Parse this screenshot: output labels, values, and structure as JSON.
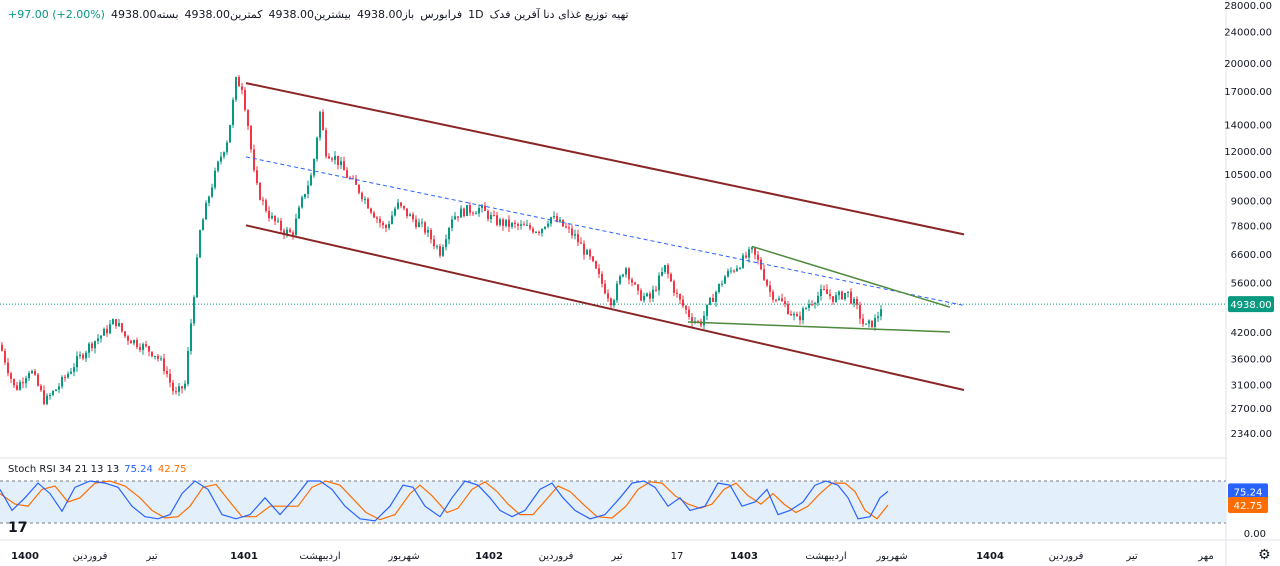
{
  "legend": {
    "title": "تهیه توزیع غذای دنا آفرین فدک",
    "interval": "1D",
    "exchange": "فرابورس",
    "open": "باز4938.00",
    "high": "بیشترین4938.00",
    "low": "کمترین4938.00",
    "close": "بسته4938.00",
    "change": "+97.00 (+2.00%)"
  },
  "stoch": {
    "label": "Stoch RSI 34 21 13 13",
    "k_value": "75.24",
    "d_value": "42.75"
  },
  "chart_data": {
    "type": "candlestick",
    "y_scale": "log",
    "price_axis": [
      "28000.00",
      "24000.00",
      "20000.00",
      "17000.00",
      "14000.00",
      "12000.00",
      "10500.00",
      "9000.00",
      "7800.00",
      "6600.00",
      "5600.00",
      "4200.00",
      "3600.00",
      "3100.00",
      "2700.00",
      "2340.00"
    ],
    "last_price": "4938.00",
    "time_axis": [
      "1400",
      "فروردین",
      "تیر",
      "1401",
      "اردیبهشت",
      "شهریور",
      "1402",
      "فروردین",
      "تیر",
      "17",
      "1403",
      "اردیبهشت",
      "شهریور",
      "1404",
      "فروردین",
      "تیر",
      "مهر"
    ],
    "stoch_axis": [
      "75.24",
      "42.75",
      "0.00"
    ],
    "stoch_bands": [
      80,
      20
    ],
    "colors": {
      "up": "#089981",
      "down": "#f23645",
      "channel": "#8b2525",
      "triangle": "#4e8a3c",
      "midline": "#2962ff",
      "k": "#2962ff",
      "d": "#ff6d00",
      "band_fill": "#e3f0fc"
    },
    "price_path": [
      [
        0,
        3900
      ],
      [
        15,
        3000
      ],
      [
        30,
        3400
      ],
      [
        45,
        2800
      ],
      [
        60,
        3100
      ],
      [
        75,
        3500
      ],
      [
        90,
        3900
      ],
      [
        105,
        4200
      ],
      [
        115,
        4500
      ],
      [
        125,
        4100
      ],
      [
        140,
        3900
      ],
      [
        155,
        3700
      ],
      [
        165,
        3400
      ],
      [
        175,
        2900
      ],
      [
        185,
        3100
      ],
      [
        192,
        4700
      ],
      [
        200,
        7500
      ],
      [
        210,
        9500
      ],
      [
        220,
        11500
      ],
      [
        228,
        13000
      ],
      [
        236,
        18000
      ],
      [
        242,
        17500
      ],
      [
        248,
        14000
      ],
      [
        255,
        10000
      ],
      [
        262,
        9000
      ],
      [
        270,
        8200
      ],
      [
        282,
        7600
      ],
      [
        292,
        7400
      ],
      [
        305,
        9500
      ],
      [
        312,
        10500
      ],
      [
        320,
        15000
      ],
      [
        326,
        12000
      ],
      [
        336,
        11500
      ],
      [
        348,
        10300
      ],
      [
        360,
        9500
      ],
      [
        372,
        8500
      ],
      [
        385,
        7600
      ],
      [
        397,
        8800
      ],
      [
        410,
        8200
      ],
      [
        425,
        7600
      ],
      [
        440,
        6700
      ],
      [
        452,
        8200
      ],
      [
        465,
        8500
      ],
      [
        480,
        8600
      ],
      [
        495,
        8000
      ],
      [
        510,
        7800
      ],
      [
        525,
        7700
      ],
      [
        540,
        7600
      ],
      [
        550,
        8200
      ],
      [
        562,
        7800
      ],
      [
        575,
        7300
      ],
      [
        590,
        6400
      ],
      [
        603,
        5500
      ],
      [
        612,
        5000
      ],
      [
        625,
        6200
      ],
      [
        638,
        5200
      ],
      [
        650,
        5100
      ],
      [
        665,
        6100
      ],
      [
        678,
        5100
      ],
      [
        690,
        4600
      ],
      [
        700,
        4400
      ],
      [
        712,
        5100
      ],
      [
        725,
        5800
      ],
      [
        738,
        6200
      ],
      [
        752,
        6700
      ],
      [
        760,
        6200
      ],
      [
        770,
        5300
      ],
      [
        785,
        4900
      ],
      [
        797,
        4500
      ],
      [
        810,
        5000
      ],
      [
        823,
        5300
      ],
      [
        835,
        5100
      ],
      [
        847,
        5300
      ],
      [
        857,
        4800
      ],
      [
        865,
        4300
      ],
      [
        876,
        4500
      ],
      [
        882,
        4938
      ]
    ],
    "channel_upper": [
      [
        246,
        17800
      ],
      [
        964,
        7400
      ]
    ],
    "channel_lower": [
      [
        246,
        7800
      ],
      [
        964,
        3000
      ]
    ],
    "triangle_upper": [
      [
        752,
        6900
      ],
      [
        950,
        4850
      ]
    ],
    "triangle_lower": [
      [
        688,
        4450
      ],
      [
        950,
        4200
      ]
    ],
    "midline": [
      [
        246,
        11600
      ],
      [
        964,
        4900
      ]
    ],
    "stoch_k_path": [
      [
        0,
        80
      ],
      [
        12,
        30
      ],
      [
        25,
        60
      ],
      [
        38,
        95
      ],
      [
        50,
        70
      ],
      [
        62,
        28
      ],
      [
        75,
        85
      ],
      [
        90,
        100
      ],
      [
        105,
        95
      ],
      [
        118,
        85
      ],
      [
        132,
        40
      ],
      [
        145,
        15
      ],
      [
        158,
        10
      ],
      [
        170,
        20
      ],
      [
        182,
        70
      ],
      [
        195,
        100
      ],
      [
        208,
        80
      ],
      [
        222,
        20
      ],
      [
        236,
        10
      ],
      [
        250,
        20
      ],
      [
        265,
        60
      ],
      [
        280,
        20
      ],
      [
        295,
        60
      ],
      [
        308,
        100
      ],
      [
        320,
        100
      ],
      [
        332,
        80
      ],
      [
        345,
        40
      ],
      [
        360,
        10
      ],
      [
        375,
        5
      ],
      [
        390,
        40
      ],
      [
        403,
        90
      ],
      [
        413,
        85
      ],
      [
        425,
        40
      ],
      [
        440,
        15
      ],
      [
        452,
        60
      ],
      [
        465,
        100
      ],
      [
        478,
        90
      ],
      [
        490,
        60
      ],
      [
        500,
        30
      ],
      [
        512,
        15
      ],
      [
        525,
        30
      ],
      [
        540,
        80
      ],
      [
        552,
        95
      ],
      [
        563,
        60
      ],
      [
        575,
        30
      ],
      [
        590,
        10
      ],
      [
        605,
        20
      ],
      [
        620,
        60
      ],
      [
        632,
        95
      ],
      [
        644,
        100
      ],
      [
        655,
        85
      ],
      [
        668,
        40
      ],
      [
        680,
        60
      ],
      [
        690,
        30
      ],
      [
        705,
        40
      ],
      [
        718,
        95
      ],
      [
        730,
        90
      ],
      [
        742,
        40
      ],
      [
        755,
        50
      ],
      [
        767,
        80
      ],
      [
        778,
        20
      ],
      [
        790,
        30
      ],
      [
        803,
        50
      ],
      [
        815,
        90
      ],
      [
        826,
        100
      ],
      [
        838,
        90
      ],
      [
        848,
        60
      ],
      [
        858,
        10
      ],
      [
        870,
        15
      ],
      [
        880,
        60
      ],
      [
        888,
        75.24
      ]
    ],
    "stoch_d_path": [
      [
        0,
        70
      ],
      [
        15,
        45
      ],
      [
        28,
        40
      ],
      [
        42,
        80
      ],
      [
        55,
        88
      ],
      [
        68,
        50
      ],
      [
        80,
        60
      ],
      [
        95,
        95
      ],
      [
        110,
        100
      ],
      [
        125,
        88
      ],
      [
        140,
        60
      ],
      [
        152,
        30
      ],
      [
        165,
        12
      ],
      [
        178,
        15
      ],
      [
        190,
        40
      ],
      [
        203,
        85
      ],
      [
        216,
        92
      ],
      [
        230,
        50
      ],
      [
        242,
        15
      ],
      [
        256,
        15
      ],
      [
        270,
        40
      ],
      [
        285,
        40
      ],
      [
        298,
        40
      ],
      [
        312,
        85
      ],
      [
        326,
        100
      ],
      [
        340,
        90
      ],
      [
        352,
        60
      ],
      [
        366,
        25
      ],
      [
        380,
        8
      ],
      [
        395,
        20
      ],
      [
        410,
        70
      ],
      [
        420,
        90
      ],
      [
        432,
        65
      ],
      [
        447,
        25
      ],
      [
        458,
        35
      ],
      [
        472,
        80
      ],
      [
        485,
        98
      ],
      [
        497,
        75
      ],
      [
        508,
        45
      ],
      [
        520,
        20
      ],
      [
        533,
        20
      ],
      [
        546,
        55
      ],
      [
        558,
        88
      ],
      [
        570,
        75
      ],
      [
        583,
        45
      ],
      [
        597,
        15
      ],
      [
        612,
        12
      ],
      [
        626,
        40
      ],
      [
        638,
        80
      ],
      [
        650,
        98
      ],
      [
        662,
        95
      ],
      [
        675,
        65
      ],
      [
        688,
        45
      ],
      [
        700,
        35
      ],
      [
        712,
        45
      ],
      [
        724,
        80
      ],
      [
        736,
        95
      ],
      [
        748,
        65
      ],
      [
        761,
        45
      ],
      [
        773,
        70
      ],
      [
        784,
        45
      ],
      [
        796,
        25
      ],
      [
        808,
        40
      ],
      [
        820,
        70
      ],
      [
        832,
        95
      ],
      [
        845,
        95
      ],
      [
        855,
        75
      ],
      [
        865,
        30
      ],
      [
        877,
        10
      ],
      [
        888,
        42.75
      ]
    ]
  }
}
